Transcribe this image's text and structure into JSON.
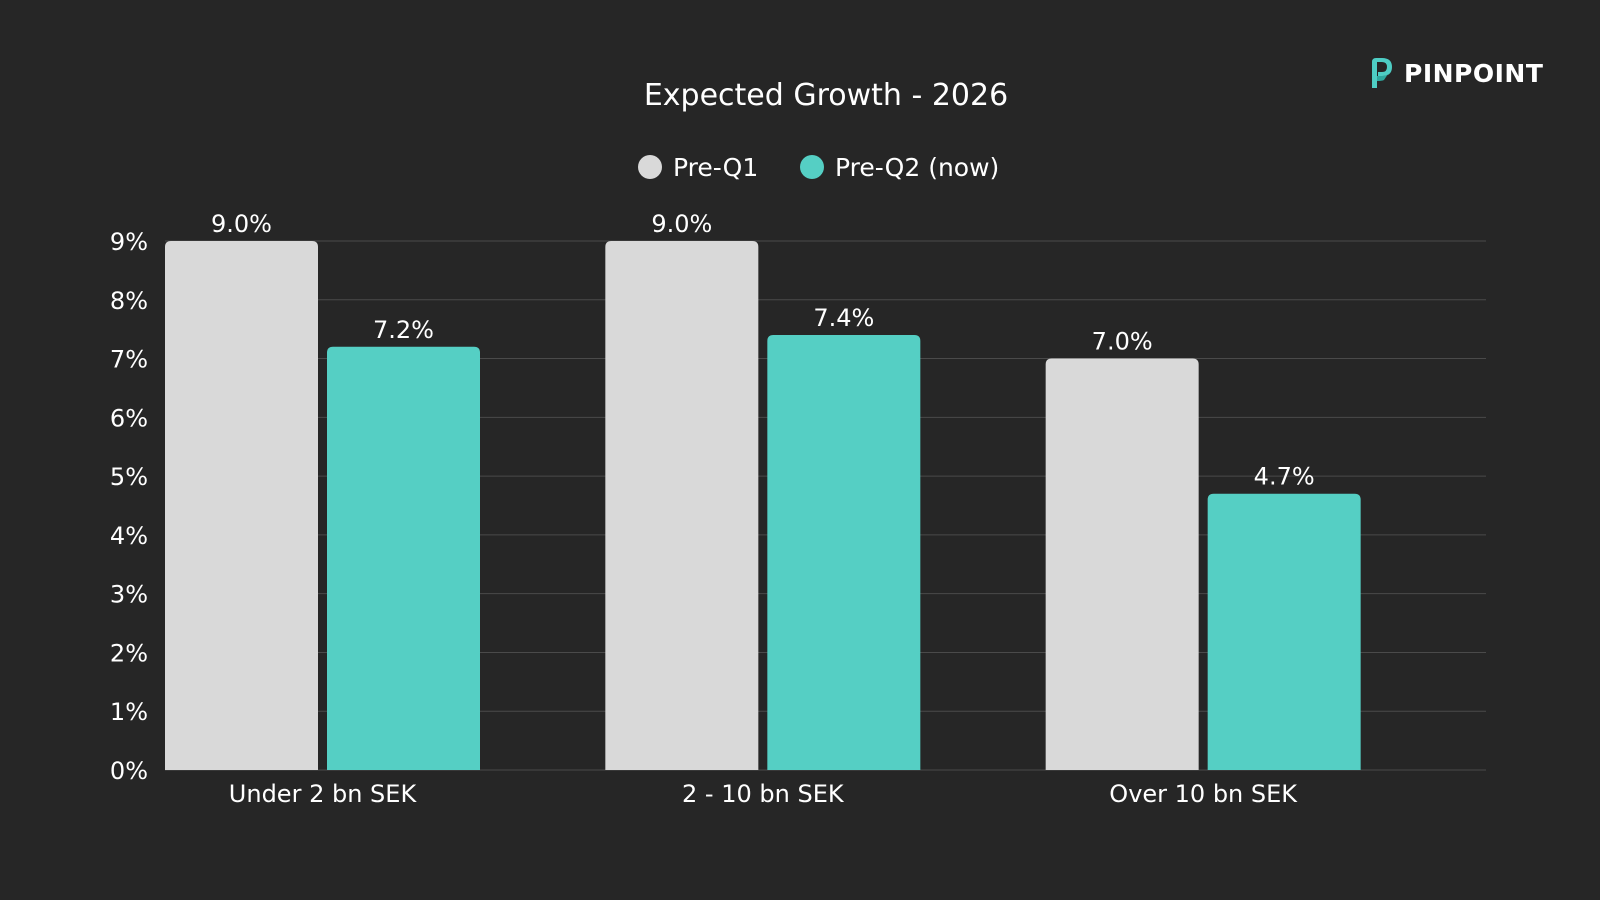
{
  "brand": {
    "name": "PINPOINT",
    "icon": "pinpoint-logo-icon",
    "colors": [
      "#4ecdc4",
      "#2ea89f"
    ]
  },
  "colors": {
    "background": "#262626",
    "grid": "#4a4a4a",
    "text": "#ffffff",
    "series_pre_q1": "#d9d9d9",
    "series_pre_q2": "#55cfc4"
  },
  "chart_data": {
    "type": "bar",
    "title": "Expected Growth - 2026",
    "xlabel": "",
    "ylabel": "",
    "categories": [
      "Under 2 bn SEK",
      "2 - 10 bn SEK",
      "Over 10 bn SEK"
    ],
    "series": [
      {
        "name": "Pre-Q1",
        "values": [
          9.0,
          9.0,
          7.0
        ],
        "labels": [
          "9.0%",
          "9.0%",
          "7.0%"
        ]
      },
      {
        "name": "Pre-Q2 (now)",
        "values": [
          7.2,
          7.4,
          4.7
        ],
        "labels": [
          "7.2%",
          "7.4%",
          "4.7%"
        ]
      }
    ],
    "ylim": [
      0,
      9
    ],
    "yticks": [
      0,
      1,
      2,
      3,
      4,
      5,
      6,
      7,
      8,
      9
    ],
    "ytick_labels": [
      "0%",
      "1%",
      "2%",
      "3%",
      "4%",
      "5%",
      "6%",
      "7%",
      "8%",
      "9%"
    ],
    "grid": true,
    "legend_position": "top-center"
  }
}
